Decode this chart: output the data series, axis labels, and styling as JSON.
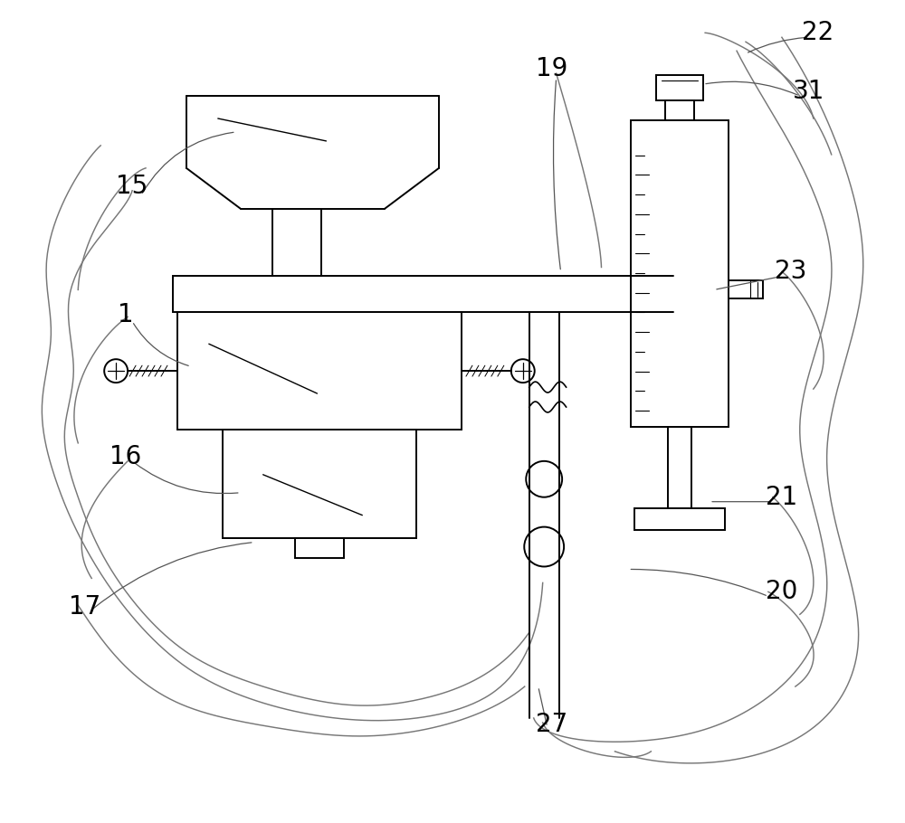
{
  "bg_color": "#ffffff",
  "line_color": "#000000",
  "label_color": "#000000",
  "label_fontsize": 20,
  "lw": 1.4
}
